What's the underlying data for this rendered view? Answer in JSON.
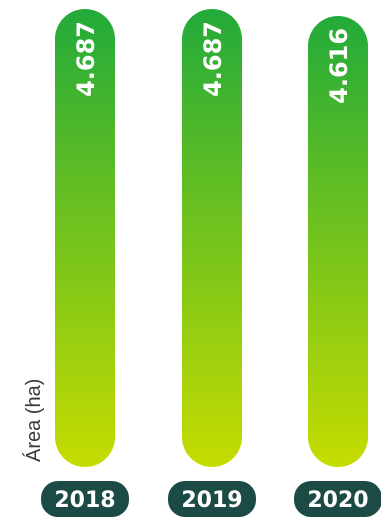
{
  "chart_data": {
    "type": "bar",
    "orientation": "vertical",
    "categories": [
      "2018",
      "2019",
      "2020"
    ],
    "values": [
      4.687,
      4.687,
      4.616
    ],
    "value_labels": [
      "4.687",
      "4.687",
      "4.616"
    ],
    "ylabel": "Área (ha)",
    "xlabel": "",
    "ylim": [
      0,
      4.687
    ],
    "grid": false,
    "legend": "none"
  },
  "colors": {
    "bar_top": "#22aa3a",
    "bar_bottom": "#c6dc00",
    "year_badge": "#1c4a44",
    "value_text": "#ffffff",
    "year_text": "#ffffff",
    "axis_text": "#3a3a3a"
  }
}
